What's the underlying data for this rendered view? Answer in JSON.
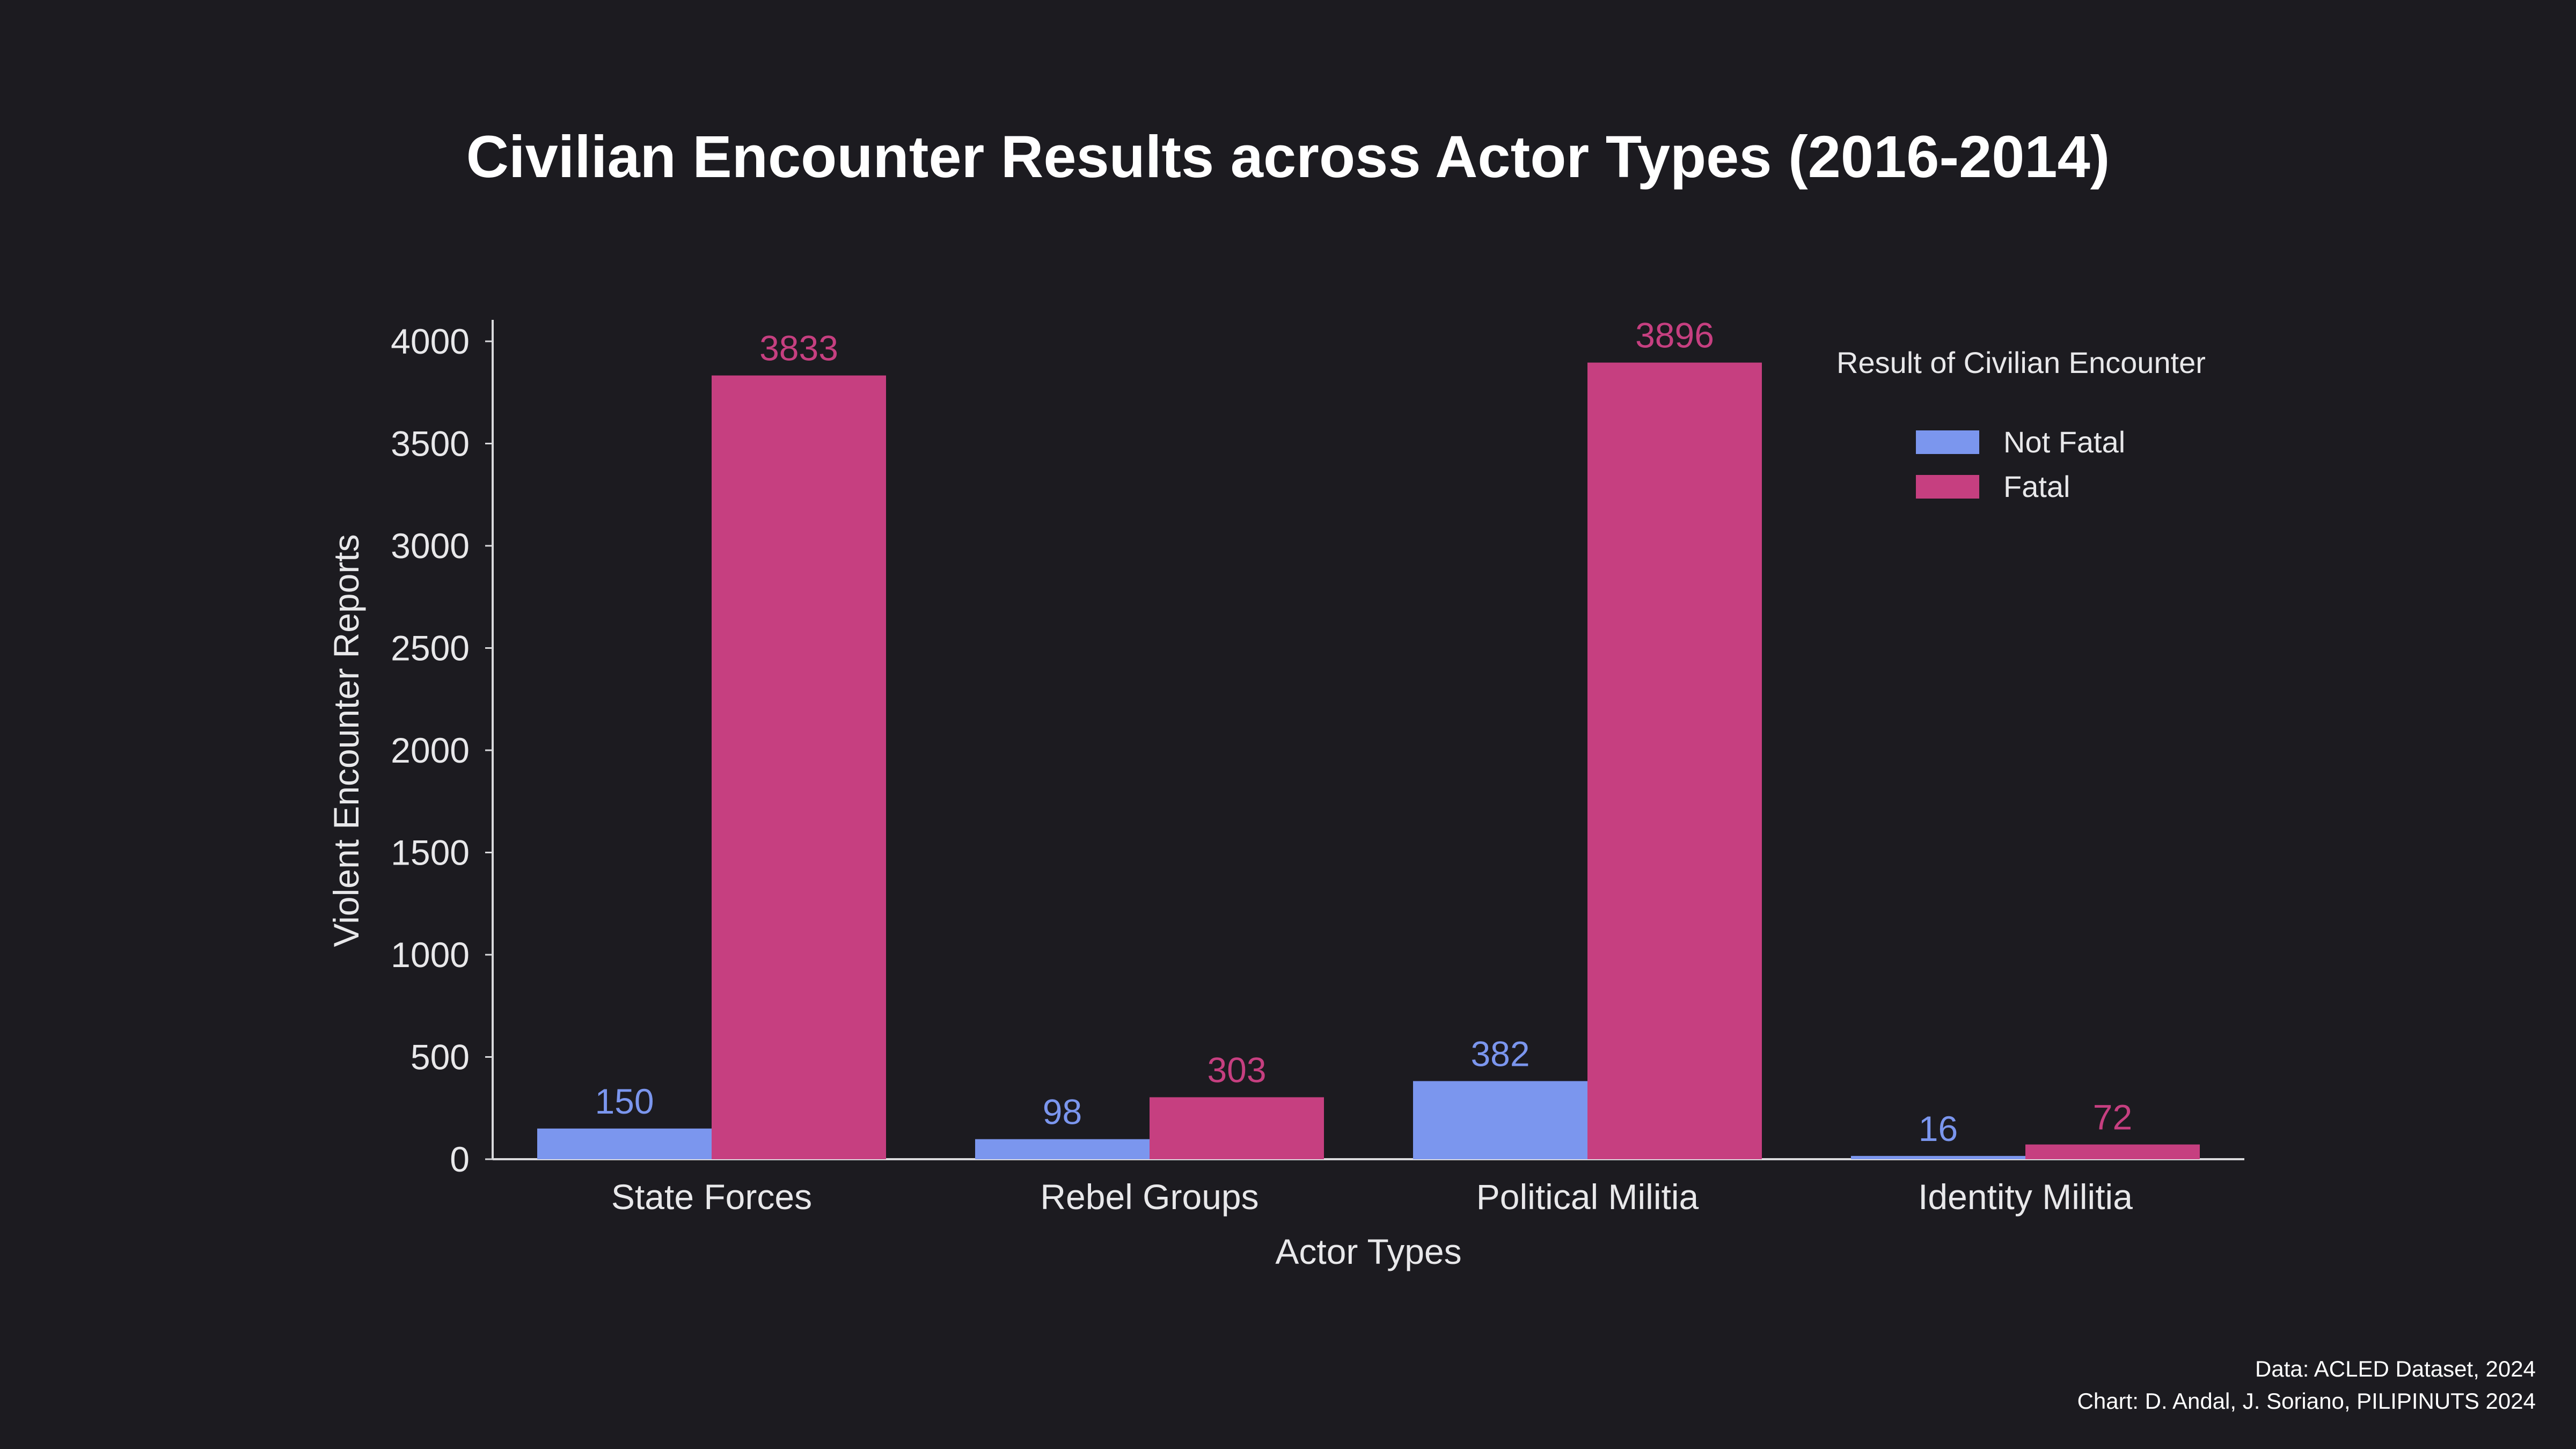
{
  "chart_data": {
    "type": "bar",
    "title": "Civilian Encounter Results across Actor Types (2016-2014)",
    "xlabel": "Actor Types",
    "ylabel": "Violent Encounter Reports",
    "categories": [
      "State Forces",
      "Rebel Groups",
      "Political Militia",
      "Identity Militia"
    ],
    "series": [
      {
        "name": "Not Fatal",
        "values": [
          150,
          98,
          382,
          16
        ],
        "color": "#7b96ee"
      },
      {
        "name": "Fatal",
        "values": [
          3833,
          303,
          3896,
          72
        ],
        "color": "#c63f80"
      }
    ],
    "ylim": [
      0,
      4000
    ],
    "yticks": [
      0,
      500,
      1000,
      1500,
      2000,
      2500,
      3000,
      3500,
      4000
    ],
    "grid": false,
    "legend": {
      "title": "Result of Civilian Encounter",
      "position": "top-right"
    }
  },
  "credits": {
    "source": "Data: ACLED Dataset, 2024",
    "chart": "Chart: D. Andal, J. Soriano, PILIPINUTS 2024"
  },
  "colors": {
    "background": "#1c1b20",
    "axis": "#d9d9dc",
    "text": "#e8e8ea"
  }
}
